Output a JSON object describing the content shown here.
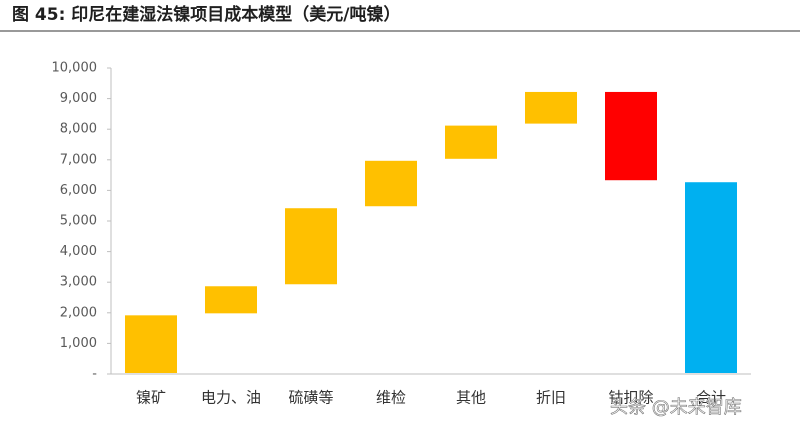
{
  "chart_data": {
    "type": "waterfall",
    "title": "图 45: 印尼在建湿法镍项目成本模型（美元/吨镍）",
    "categories": [
      "镍矿",
      "电力、油",
      "硫磺等",
      "维检",
      "其他",
      "折旧",
      "钴扣除",
      "合计"
    ],
    "values": [
      1950,
      950,
      2550,
      1550,
      1150,
      1100,
      -2950,
      6300
    ],
    "is_total": [
      false,
      false,
      false,
      false,
      false,
      false,
      false,
      true
    ],
    "colors": {
      "increase": "#ffc000",
      "decrease": "#ff0000",
      "total": "#00b0f0"
    },
    "ylim": [
      0,
      10000
    ],
    "yticks": [
      {
        "value": 0,
        "label": "-"
      },
      {
        "value": 1000,
        "label": "1,000"
      },
      {
        "value": 2000,
        "label": "2,000"
      },
      {
        "value": 3000,
        "label": "3,000"
      },
      {
        "value": 4000,
        "label": "4,000"
      },
      {
        "value": 5000,
        "label": "5,000"
      },
      {
        "value": 6000,
        "label": "6,000"
      },
      {
        "value": 7000,
        "label": "7,000"
      },
      {
        "value": 8000,
        "label": "8,000"
      },
      {
        "value": 9000,
        "label": "9,000"
      },
      {
        "value": 10000,
        "label": "10,000"
      }
    ],
    "grid": false,
    "watermark": "头条 @未来智库"
  }
}
